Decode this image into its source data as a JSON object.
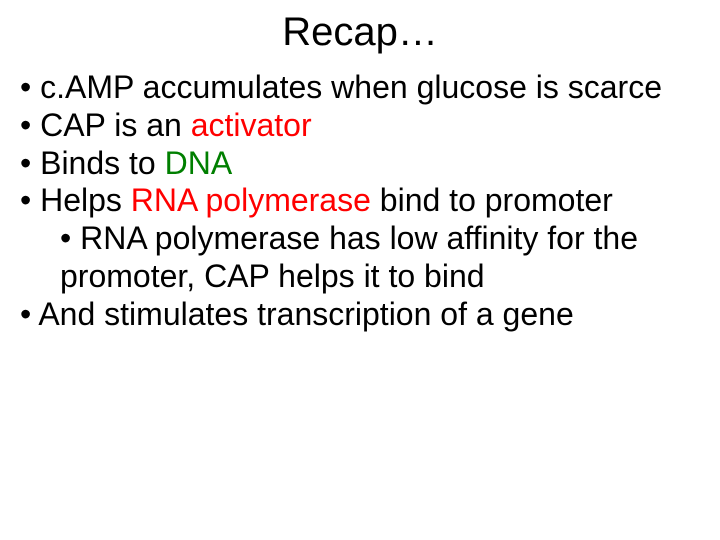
{
  "title": "Recap…",
  "title_fontsize": 40,
  "content_fontsize": 32,
  "colors": {
    "background": "#ffffff",
    "text": "#000000",
    "red": "#ff0000",
    "green": "#007f00"
  },
  "bullets": [
    {
      "prefix": "• ",
      "text_parts": [
        {
          "text": "c.AMP accumulates when glucose is scarce",
          "color": null
        }
      ],
      "indent": 0
    },
    {
      "prefix": "• ",
      "text_parts": [
        {
          "text": "CAP  is an ",
          "color": null
        },
        {
          "text": "activator",
          "color": "red"
        }
      ],
      "indent": 0
    },
    {
      "prefix": "• ",
      "text_parts": [
        {
          "text": "Binds to ",
          "color": null
        },
        {
          "text": "DNA",
          "color": "green"
        }
      ],
      "indent": 0
    },
    {
      "prefix": "• ",
      "text_parts": [
        {
          "text": "Helps ",
          "color": null
        },
        {
          "text": "RNA polymerase ",
          "color": "red"
        },
        {
          "text": "bind to promoter",
          "color": null
        }
      ],
      "indent": 0
    },
    {
      "prefix": "• ",
      "text_parts": [
        {
          "text": "RNA polymerase has low affinity for the promoter, CAP helps it to bind",
          "color": null
        }
      ],
      "indent": 1
    },
    {
      "prefix": "• ",
      "text_parts": [
        {
          "text": "And stimulates transcription of a gene",
          "color": null
        }
      ],
      "indent": 0
    }
  ]
}
